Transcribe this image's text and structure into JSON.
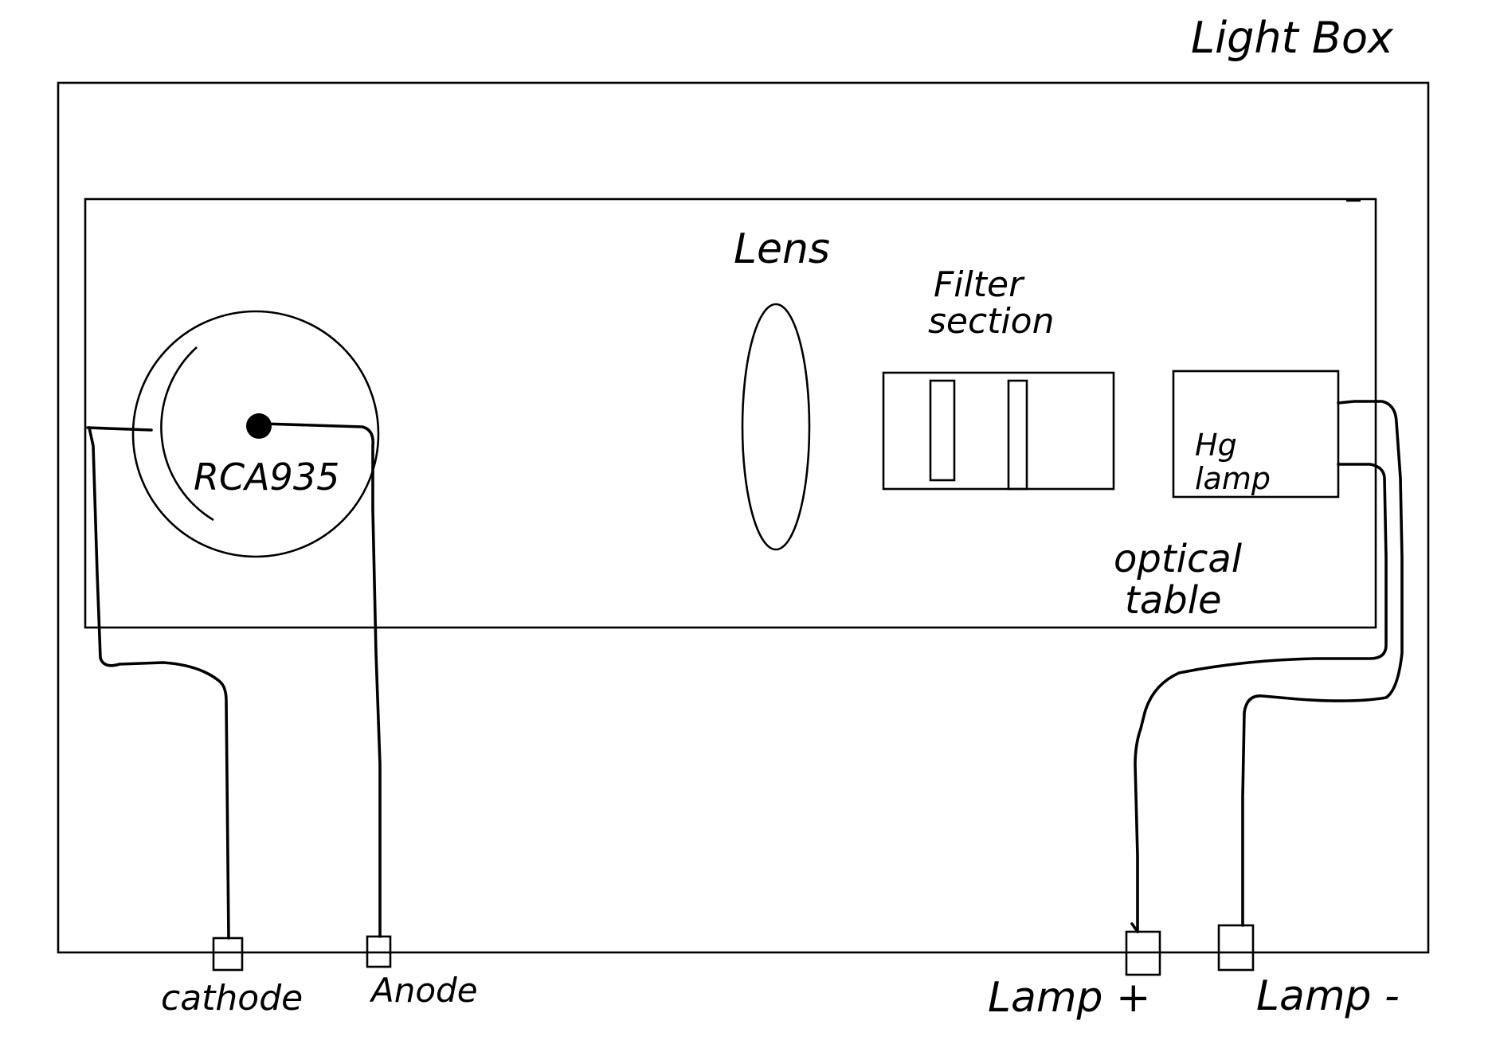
{
  "labels": {
    "light_box": "Light Box",
    "lens": "Lens",
    "filter_line1": "Filter",
    "filter_line2": "section",
    "hg_line1": "Hg",
    "hg_line2": "lamp",
    "optical_line1": "optical",
    "optical_line2": "table",
    "tube": "RCA935",
    "cathode": "cathode",
    "anode": "Anode",
    "lamp_plus": "Lamp +",
    "lamp_minus": "Lamp -"
  },
  "colors": {
    "ink": "#000000",
    "paper": "#ffffff"
  }
}
